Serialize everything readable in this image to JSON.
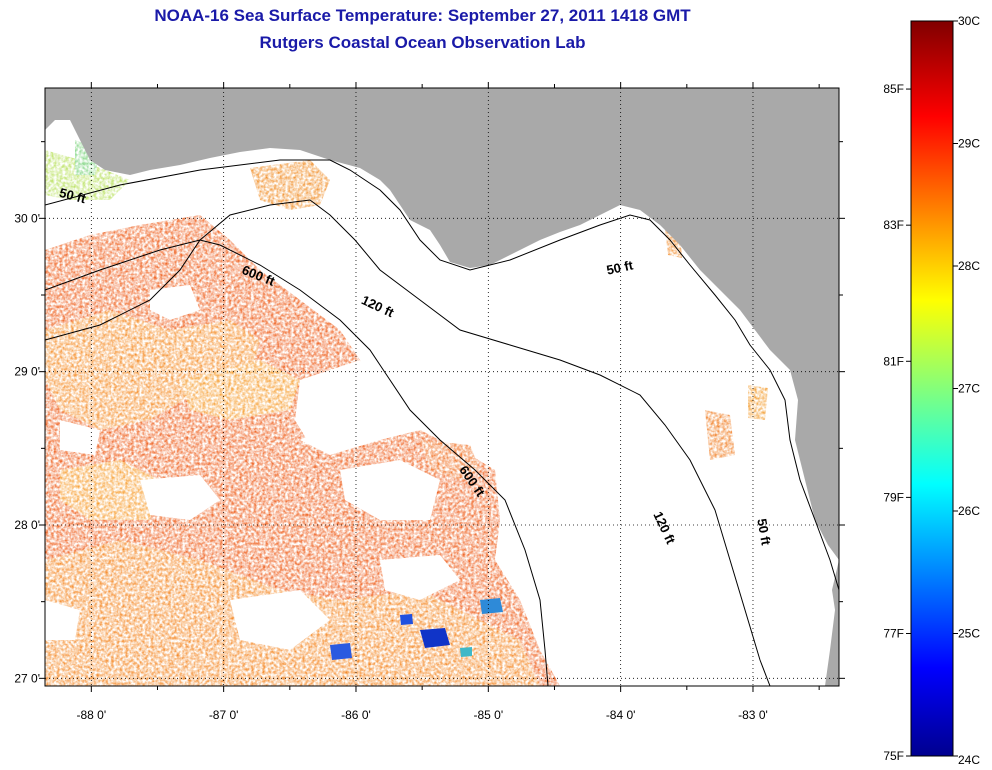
{
  "title": "NOAA-16 Sea Surface Temperature:  September 27, 2011 1418 GMT",
  "subtitle": "Rutgers Coastal Ocean Observation Lab",
  "colors": {
    "land": "#a9a9a9",
    "cloud_nodata": "#ffffff",
    "title": "#1a1aa8"
  },
  "map": {
    "lon_range": [
      -88.35,
      -82.35
    ],
    "lat_range": [
      26.95,
      30.85
    ],
    "lon_ticks": [
      {
        "value": -88,
        "label": "-88 0'"
      },
      {
        "value": -87,
        "label": "-87 0'"
      },
      {
        "value": -86,
        "label": "-86 0'"
      },
      {
        "value": -85,
        "label": "-85 0'"
      },
      {
        "value": -84,
        "label": "-84 0'"
      },
      {
        "value": -83,
        "label": "-83 0'"
      }
    ],
    "lat_ticks": [
      {
        "value": 27,
        "label": "27 0'"
      },
      {
        "value": 28,
        "label": "28 0'"
      },
      {
        "value": 29,
        "label": "29 0'"
      },
      {
        "value": 30,
        "label": "30 0'"
      }
    ],
    "grid": "dotted",
    "contour_labels": [
      {
        "text": "50 ft",
        "lon": -88.15,
        "lat": 30.12,
        "rotate": 15
      },
      {
        "text": "600 ft",
        "lon": -86.75,
        "lat": 29.6,
        "rotate": 22
      },
      {
        "text": "120 ft",
        "lon": -85.85,
        "lat": 29.4,
        "rotate": 25
      },
      {
        "text": "50 ft",
        "lon": -84.0,
        "lat": 29.65,
        "rotate": -12
      },
      {
        "text": "600 ft",
        "lon": -85.15,
        "lat": 28.27,
        "rotate": 55
      },
      {
        "text": "120 ft",
        "lon": -83.7,
        "lat": 27.97,
        "rotate": 65
      },
      {
        "text": "50 ft",
        "lon": -82.95,
        "lat": 27.95,
        "rotate": 80
      }
    ]
  },
  "colorbar": {
    "min_c": 24,
    "max_c": 30,
    "celsius_labels": [
      "30C",
      "29C",
      "28C",
      "27C",
      "26C",
      "25C",
      "24C"
    ],
    "fahrenheit_labels": [
      "85F",
      "83F",
      "81F",
      "79F",
      "77F",
      "75F"
    ]
  }
}
